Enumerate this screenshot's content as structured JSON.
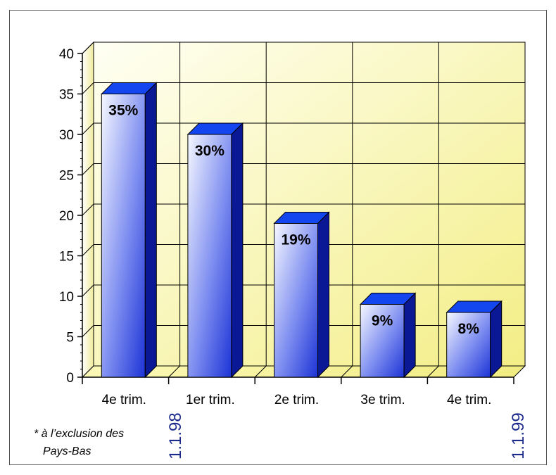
{
  "chart_data": {
    "type": "bar",
    "categories": [
      "4e trim.",
      "1er trim.",
      "2e trim.",
      "3e trim.",
      "4e trim."
    ],
    "values": [
      35,
      30,
      19,
      9,
      8
    ],
    "data_labels": [
      "35%",
      "30%",
      "19%",
      "9%",
      "8%"
    ],
    "ylim": [
      0,
      40
    ],
    "yticks": [
      0,
      5,
      10,
      15,
      20,
      25,
      30,
      35,
      40
    ],
    "grid": true,
    "three_d": true,
    "date_markers": [
      "1.1.98",
      "1.1.99"
    ],
    "footnote": [
      "* à l’exclusion des",
      "Pays-Bas"
    ],
    "colors": {
      "bar_front_light": "#f4f6ff",
      "bar_front_dark": "#2238d8",
      "bar_top": "#1446f0",
      "bar_side": "#0a1896",
      "wall_light": "#fffff0",
      "wall_dark": "#f5f08a",
      "grid": "#000000",
      "date_text": "#1c2a8c"
    }
  }
}
